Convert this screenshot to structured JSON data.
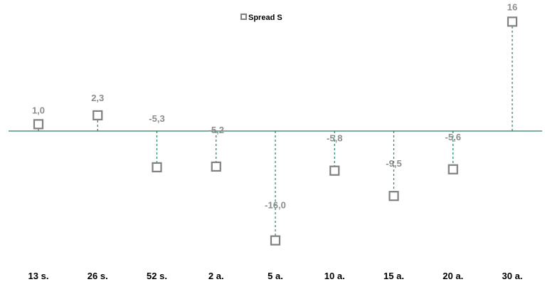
{
  "chart_data": {
    "type": "scatter",
    "title": "",
    "xlabel": "",
    "ylabel": "",
    "categories": [
      "13 s.",
      "26 s.",
      "52 s.",
      "2 a.",
      "5 a.",
      "10 a.",
      "15 a.",
      "20 a.",
      "30 a."
    ],
    "series": [
      {
        "name": "Spread S",
        "values": [
          1.0,
          2.3,
          -5.3,
          -5.2,
          -16.0,
          -5.8,
          -9.5,
          -5.6,
          16
        ],
        "labels": [
          "1,0",
          "2,3",
          "-5,3",
          "-5,2",
          "-16,0",
          "-5,8",
          "-9,5",
          "-5,6",
          "16"
        ]
      }
    ],
    "ylim": [
      -19,
      19
    ],
    "grid": false,
    "legend": "top-center",
    "colors": {
      "marker_stroke": "#808080",
      "axis": "#2e7d5b",
      "drop_line": "#2e7d5b",
      "data_label": "#8c8c8c",
      "category_label": "#000000"
    }
  }
}
